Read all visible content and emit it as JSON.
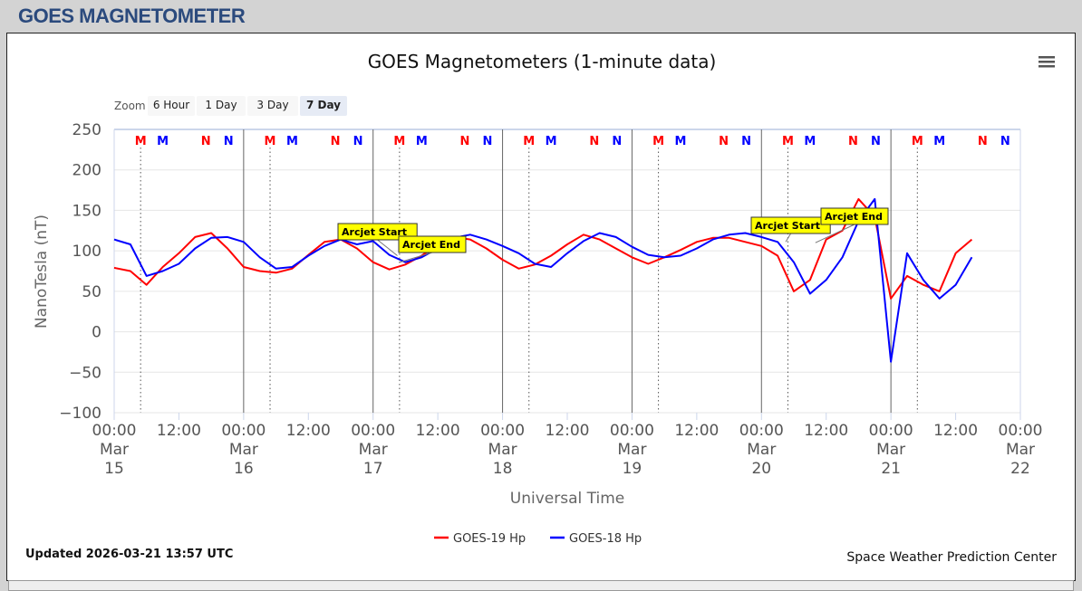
{
  "header": {
    "title": "GOES MAGNETOMETER"
  },
  "menu_icon": "hamburger-menu-icon",
  "zoom": {
    "label": "Zoom",
    "buttons": [
      "6 Hour",
      "1 Day",
      "3 Day",
      "7 Day"
    ],
    "selected": "7 Day"
  },
  "footer": {
    "updated": "Updated 2026-03-21 13:57 UTC",
    "credit": "Space Weather Prediction Center"
  },
  "chart_data": {
    "type": "line",
    "title": "GOES Magnetometers (1-minute data)",
    "xlabel": "Universal Time",
    "ylabel": "NanoTesla (nT)",
    "xlim": [
      "2026-03-15T00:00",
      "2026-03-22T00:00"
    ],
    "ylim": [
      -100,
      250
    ],
    "yticks": [
      "250",
      "200",
      "150",
      "100",
      "50",
      "0",
      "−50",
      "−100"
    ],
    "ytick_values": [
      250,
      200,
      150,
      100,
      50,
      0,
      -50,
      -100
    ],
    "xticks": [
      {
        "t": "2026-03-15T00:00",
        "l1": "00:00",
        "l2": "Mar",
        "l3": "15"
      },
      {
        "t": "2026-03-15T12:00",
        "l1": "12:00"
      },
      {
        "t": "2026-03-16T00:00",
        "l1": "00:00",
        "l2": "Mar",
        "l3": "16"
      },
      {
        "t": "2026-03-16T12:00",
        "l1": "12:00"
      },
      {
        "t": "2026-03-17T00:00",
        "l1": "00:00",
        "l2": "Mar",
        "l3": "17"
      },
      {
        "t": "2026-03-17T12:00",
        "l1": "12:00"
      },
      {
        "t": "2026-03-18T00:00",
        "l1": "00:00",
        "l2": "Mar",
        "l3": "18"
      },
      {
        "t": "2026-03-18T12:00",
        "l1": "12:00"
      },
      {
        "t": "2026-03-19T00:00",
        "l1": "00:00",
        "l2": "Mar",
        "l3": "19"
      },
      {
        "t": "2026-03-19T12:00",
        "l1": "12:00"
      },
      {
        "t": "2026-03-20T00:00",
        "l1": "00:00",
        "l2": "Mar",
        "l3": "20"
      },
      {
        "t": "2026-03-20T12:00",
        "l1": "12:00"
      },
      {
        "t": "2026-03-21T00:00",
        "l1": "00:00",
        "l2": "Mar",
        "l3": "21"
      },
      {
        "t": "2026-03-21T12:00",
        "l1": "12:00"
      },
      {
        "t": "2026-03-22T00:00",
        "l1": "00:00",
        "l2": "Mar",
        "l3": "22"
      }
    ],
    "grid": true,
    "legend": "bottom-center",
    "start": "2026-03-15T00:00",
    "step_hours": 3,
    "series": [
      {
        "name": "GOES-19 Hp",
        "color": "#ff0000",
        "values": [
          79,
          75,
          58,
          80,
          97,
          117,
          122,
          103,
          80,
          75,
          73,
          78,
          95,
          111,
          114,
          103,
          86,
          77,
          83,
          94,
          108,
          117,
          114,
          103,
          89,
          78,
          83,
          94,
          108,
          120,
          114,
          103,
          92,
          84,
          92,
          101,
          111,
          116,
          116,
          111,
          106,
          94,
          50,
          64,
          114,
          125,
          164,
          142,
          41,
          69,
          58,
          50,
          97,
          114
        ]
      },
      {
        "name": "GOES-18 Hp",
        "color": "#0000ff",
        "values": [
          114,
          108,
          69,
          75,
          84,
          103,
          116,
          117,
          111,
          92,
          78,
          80,
          94,
          106,
          114,
          108,
          112,
          95,
          86,
          92,
          103,
          116,
          120,
          114,
          106,
          97,
          84,
          80,
          97,
          112,
          122,
          117,
          105,
          95,
          92,
          94,
          103,
          114,
          120,
          122,
          117,
          111,
          86,
          47,
          64,
          92,
          137,
          164,
          -37,
          97,
          64,
          41,
          58,
          92
        ]
      }
    ],
    "markers": [
      {
        "label": "M",
        "color": "#ff0000",
        "offset_hours": 4.9
      },
      {
        "label": "M",
        "color": "#0000ff",
        "offset_hours": 9.0
      },
      {
        "label": "N",
        "color": "#ff0000",
        "offset_hours": 17.0
      },
      {
        "label": "N",
        "color": "#0000ff",
        "offset_hours": 21.2
      }
    ],
    "annotations": [
      {
        "label": "Arcjet Start",
        "t": "2026-03-17T04:30",
        "y": 94
      },
      {
        "label": "Arcjet End",
        "t": "2026-03-17T05:00",
        "y": 86
      },
      {
        "label": "Arcjet Start",
        "t": "2026-03-20T04:30",
        "y": 111
      },
      {
        "label": "Arcjet End",
        "t": "2026-03-20T10:00",
        "y": 110
      }
    ],
    "annotation_color": "#ffff00"
  }
}
